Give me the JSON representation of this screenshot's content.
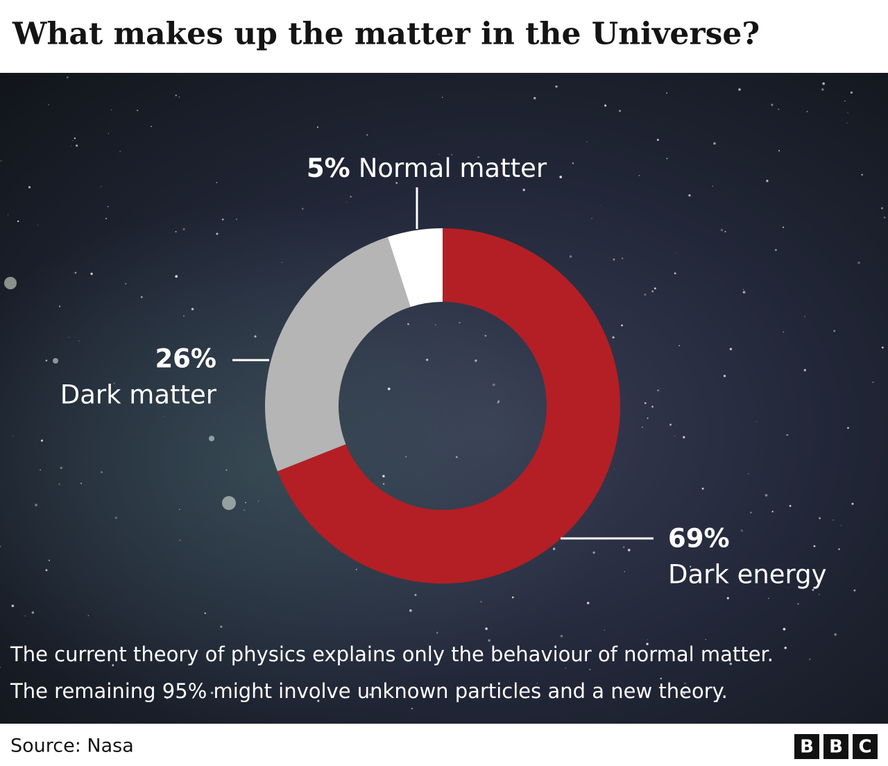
{
  "chart_data": {
    "type": "pie",
    "donut": true,
    "title": "What makes up the matter in the Universe?",
    "categories": [
      "Dark energy",
      "Dark matter",
      "Normal matter"
    ],
    "values": [
      69,
      26,
      5
    ],
    "value_labels": [
      "69%",
      "26%",
      "5%"
    ],
    "colors": [
      "#b31f24",
      "#b5b5b5",
      "#ffffff"
    ],
    "note": [
      "The current theory of physics explains only the behaviour of normal matter.",
      "The remaining 95% might involve unknown particles and a new theory."
    ],
    "source": "Source: Nasa",
    "logo": [
      "B",
      "B",
      "C"
    ]
  }
}
